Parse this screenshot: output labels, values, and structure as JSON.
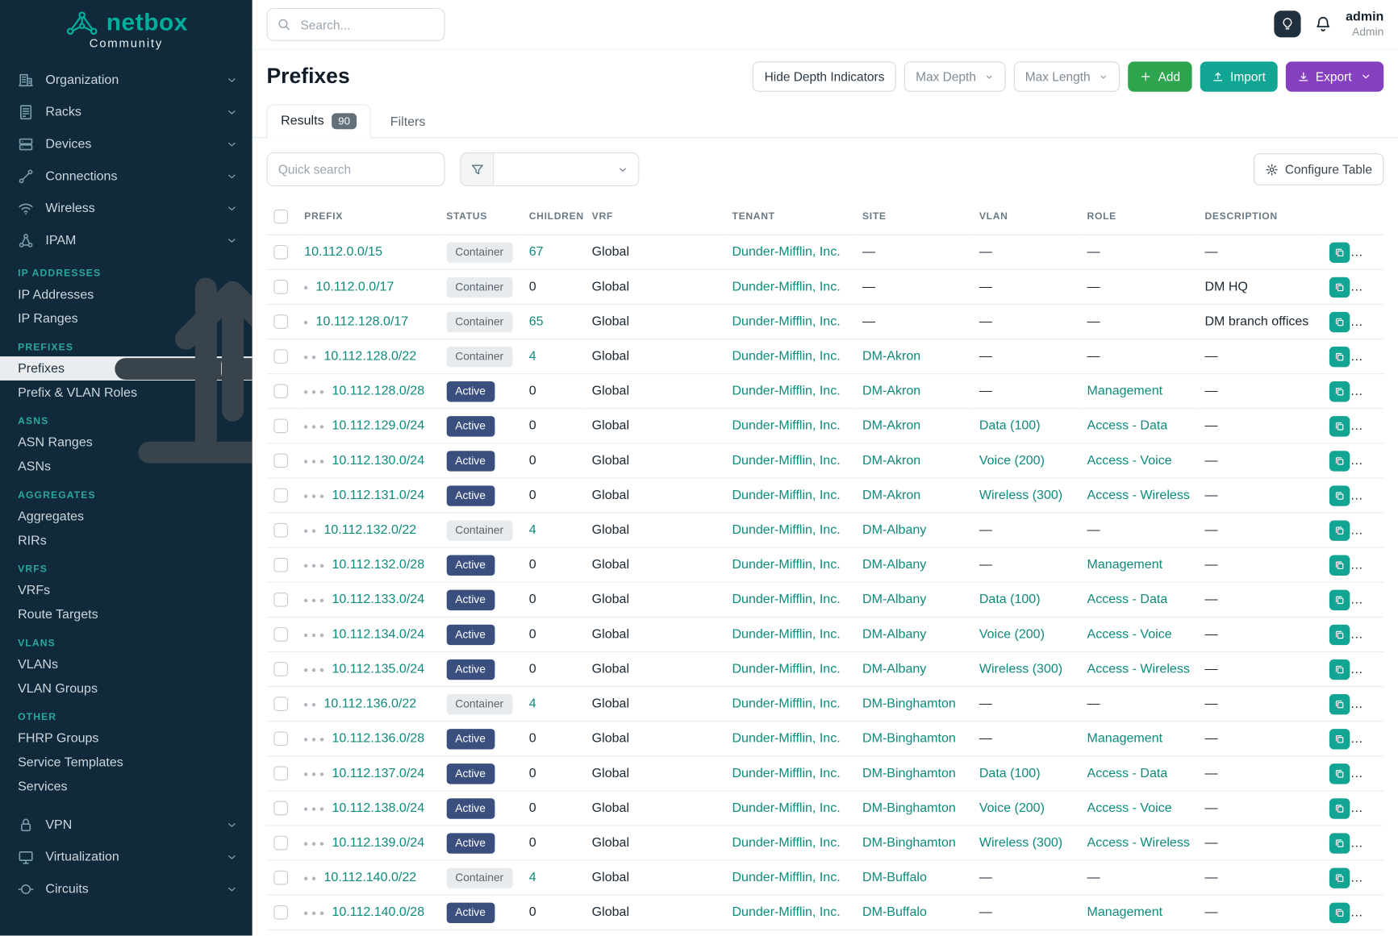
{
  "brand": {
    "name": "netbox",
    "subtitle": "Community"
  },
  "topbar": {
    "search_placeholder": "Search...",
    "user_name": "admin",
    "user_role": "Admin"
  },
  "sidebar": {
    "top_items": [
      {
        "label": "Organization",
        "icon": "building-icon"
      },
      {
        "label": "Racks",
        "icon": "rack-icon"
      },
      {
        "label": "Devices",
        "icon": "server-icon"
      },
      {
        "label": "Connections",
        "icon": "cable-icon"
      },
      {
        "label": "Wireless",
        "icon": "wifi-icon"
      },
      {
        "label": "IPAM",
        "icon": "network-icon"
      }
    ],
    "ipam_sections": [
      {
        "header": "IP ADDRESSES",
        "items": [
          {
            "label": "IP Addresses"
          },
          {
            "label": "IP Ranges"
          }
        ]
      },
      {
        "header": "PREFIXES",
        "items": [
          {
            "label": "Prefixes",
            "active": true,
            "quick_actions": [
              "plus-icon",
              "upload-icon"
            ]
          },
          {
            "label": "Prefix & VLAN Roles"
          }
        ]
      },
      {
        "header": "ASNS",
        "items": [
          {
            "label": "ASN Ranges"
          },
          {
            "label": "ASNs"
          }
        ]
      },
      {
        "header": "AGGREGATES",
        "items": [
          {
            "label": "Aggregates"
          },
          {
            "label": "RIRs"
          }
        ]
      },
      {
        "header": "VRFS",
        "items": [
          {
            "label": "VRFs"
          },
          {
            "label": "Route Targets"
          }
        ]
      },
      {
        "header": "VLANS",
        "items": [
          {
            "label": "VLANs"
          },
          {
            "label": "VLAN Groups"
          }
        ]
      },
      {
        "header": "OTHER",
        "items": [
          {
            "label": "FHRP Groups"
          },
          {
            "label": "Service Templates"
          },
          {
            "label": "Services"
          }
        ]
      }
    ],
    "bottom_items": [
      {
        "label": "VPN",
        "icon": "lock-icon"
      },
      {
        "label": "Virtualization",
        "icon": "monitor-icon"
      },
      {
        "label": "Circuits",
        "icon": "circuit-icon"
      }
    ]
  },
  "page": {
    "title": "Prefixes",
    "actions": {
      "hide_depth": "Hide Depth Indicators",
      "max_depth": "Max Depth",
      "max_length": "Max Length",
      "add": "Add",
      "import": "Import",
      "export": "Export"
    },
    "tabs": [
      {
        "label": "Results",
        "badge": "90"
      },
      {
        "label": "Filters"
      }
    ],
    "active_tab": 0,
    "quick_search_placeholder": "Quick search",
    "configure_table": "Configure Table"
  },
  "table": {
    "columns": [
      "PREFIX",
      "STATUS",
      "CHILDREN",
      "VRF",
      "TENANT",
      "SITE",
      "VLAN",
      "ROLE",
      "DESCRIPTION"
    ],
    "rows": [
      {
        "depth": 0,
        "prefix": "10.112.0.0/15",
        "status": "Container",
        "children": "67",
        "vrf": "Global",
        "tenant": "Dunder-Mifflin, Inc.",
        "site": "—",
        "vlan": "—",
        "role": "—",
        "description": "—"
      },
      {
        "depth": 1,
        "prefix": "10.112.0.0/17",
        "status": "Container",
        "children": "0",
        "vrf": "Global",
        "tenant": "Dunder-Mifflin, Inc.",
        "site": "—",
        "vlan": "—",
        "role": "—",
        "description": "DM HQ"
      },
      {
        "depth": 1,
        "prefix": "10.112.128.0/17",
        "status": "Container",
        "children": "65",
        "vrf": "Global",
        "tenant": "Dunder-Mifflin, Inc.",
        "site": "—",
        "vlan": "—",
        "role": "—",
        "description": "DM branch offices"
      },
      {
        "depth": 2,
        "prefix": "10.112.128.0/22",
        "status": "Container",
        "children": "4",
        "vrf": "Global",
        "tenant": "Dunder-Mifflin, Inc.",
        "site": "DM-Akron",
        "vlan": "—",
        "role": "—",
        "description": "—"
      },
      {
        "depth": 3,
        "prefix": "10.112.128.0/28",
        "status": "Active",
        "children": "0",
        "vrf": "Global",
        "tenant": "Dunder-Mifflin, Inc.",
        "site": "DM-Akron",
        "vlan": "—",
        "role": "Management",
        "description": "—"
      },
      {
        "depth": 3,
        "prefix": "10.112.129.0/24",
        "status": "Active",
        "children": "0",
        "vrf": "Global",
        "tenant": "Dunder-Mifflin, Inc.",
        "site": "DM-Akron",
        "vlan": "Data (100)",
        "role": "Access - Data",
        "description": "—"
      },
      {
        "depth": 3,
        "prefix": "10.112.130.0/24",
        "status": "Active",
        "children": "0",
        "vrf": "Global",
        "tenant": "Dunder-Mifflin, Inc.",
        "site": "DM-Akron",
        "vlan": "Voice (200)",
        "role": "Access - Voice",
        "description": "—"
      },
      {
        "depth": 3,
        "prefix": "10.112.131.0/24",
        "status": "Active",
        "children": "0",
        "vrf": "Global",
        "tenant": "Dunder-Mifflin, Inc.",
        "site": "DM-Akron",
        "vlan": "Wireless (300)",
        "role": "Access - Wireless",
        "description": "—"
      },
      {
        "depth": 2,
        "prefix": "10.112.132.0/22",
        "status": "Container",
        "children": "4",
        "vrf": "Global",
        "tenant": "Dunder-Mifflin, Inc.",
        "site": "DM-Albany",
        "vlan": "—",
        "role": "—",
        "description": "—"
      },
      {
        "depth": 3,
        "prefix": "10.112.132.0/28",
        "status": "Active",
        "children": "0",
        "vrf": "Global",
        "tenant": "Dunder-Mifflin, Inc.",
        "site": "DM-Albany",
        "vlan": "—",
        "role": "Management",
        "description": "—"
      },
      {
        "depth": 3,
        "prefix": "10.112.133.0/24",
        "status": "Active",
        "children": "0",
        "vrf": "Global",
        "tenant": "Dunder-Mifflin, Inc.",
        "site": "DM-Albany",
        "vlan": "Data (100)",
        "role": "Access - Data",
        "description": "—"
      },
      {
        "depth": 3,
        "prefix": "10.112.134.0/24",
        "status": "Active",
        "children": "0",
        "vrf": "Global",
        "tenant": "Dunder-Mifflin, Inc.",
        "site": "DM-Albany",
        "vlan": "Voice (200)",
        "role": "Access - Voice",
        "description": "—"
      },
      {
        "depth": 3,
        "prefix": "10.112.135.0/24",
        "status": "Active",
        "children": "0",
        "vrf": "Global",
        "tenant": "Dunder-Mifflin, Inc.",
        "site": "DM-Albany",
        "vlan": "Wireless (300)",
        "role": "Access - Wireless",
        "description": "—"
      },
      {
        "depth": 2,
        "prefix": "10.112.136.0/22",
        "status": "Container",
        "children": "4",
        "vrf": "Global",
        "tenant": "Dunder-Mifflin, Inc.",
        "site": "DM-Binghamton",
        "vlan": "—",
        "role": "—",
        "description": "—"
      },
      {
        "depth": 3,
        "prefix": "10.112.136.0/28",
        "status": "Active",
        "children": "0",
        "vrf": "Global",
        "tenant": "Dunder-Mifflin, Inc.",
        "site": "DM-Binghamton",
        "vlan": "—",
        "role": "Management",
        "description": "—"
      },
      {
        "depth": 3,
        "prefix": "10.112.137.0/24",
        "status": "Active",
        "children": "0",
        "vrf": "Global",
        "tenant": "Dunder-Mifflin, Inc.",
        "site": "DM-Binghamton",
        "vlan": "Data (100)",
        "role": "Access - Data",
        "description": "—"
      },
      {
        "depth": 3,
        "prefix": "10.112.138.0/24",
        "status": "Active",
        "children": "0",
        "vrf": "Global",
        "tenant": "Dunder-Mifflin, Inc.",
        "site": "DM-Binghamton",
        "vlan": "Voice (200)",
        "role": "Access - Voice",
        "description": "—"
      },
      {
        "depth": 3,
        "prefix": "10.112.139.0/24",
        "status": "Active",
        "children": "0",
        "vrf": "Global",
        "tenant": "Dunder-Mifflin, Inc.",
        "site": "DM-Binghamton",
        "vlan": "Wireless (300)",
        "role": "Access - Wireless",
        "description": "—"
      },
      {
        "depth": 2,
        "prefix": "10.112.140.0/22",
        "status": "Container",
        "children": "4",
        "vrf": "Global",
        "tenant": "Dunder-Mifflin, Inc.",
        "site": "DM-Buffalo",
        "vlan": "—",
        "role": "—",
        "description": "—"
      },
      {
        "depth": 3,
        "prefix": "10.112.140.0/28",
        "status": "Active",
        "children": "0",
        "vrf": "Global",
        "tenant": "Dunder-Mifflin, Inc.",
        "site": "DM-Buffalo",
        "vlan": "—",
        "role": "Management",
        "description": "—"
      }
    ]
  },
  "colors": {
    "brand_teal": "#00af9b",
    "link_teal": "#0e8a7d",
    "add_green": "#2da44e",
    "import_teal": "#12a594",
    "export_purple": "#8540bf",
    "edit_orange": "#ef8e3b",
    "copy_teal": "#12a594",
    "active_badge_blue": "#3a4f7d",
    "sidebar_bg": "#102a3b"
  }
}
